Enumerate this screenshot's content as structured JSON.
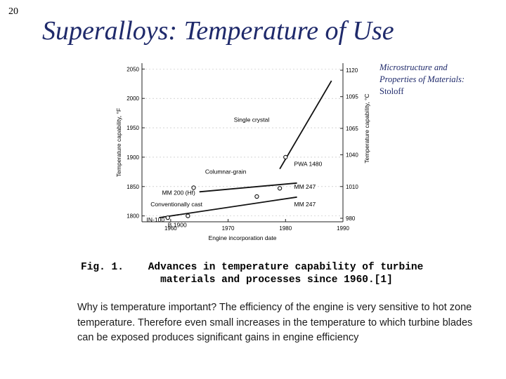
{
  "slide": {
    "number": "20",
    "title": "Superalloys: Temperature of Use",
    "source_line1": "Microstructure and",
    "source_line2": "Properties of Materials:",
    "source_author": "Stoloff",
    "caption_label": "Fig. 1.",
    "caption_line1": "Advances in temperature capability of turbine",
    "caption_line2": "materials and processes since 1960.[1]",
    "body": "Why is temperature important?  The efficiency of the engine is very sensitive to hot zone temperature.  Therefore even small increases in the temperature to which turbine blades can be exposed produces significant gains in engine efficiency"
  },
  "chart_data": {
    "type": "line",
    "xlabel": "Engine incorporation date",
    "ylabel": "Temperature capability, °F",
    "ylabel_right": "Temperature capability, °C",
    "xlim": [
      1955,
      1990
    ],
    "ylim": [
      1790,
      2060
    ],
    "x_ticks": [
      1960,
      1970,
      1980,
      1990
    ],
    "y_ticks_left": [
      1800,
      1850,
      1900,
      1950,
      2000,
      2050
    ],
    "y_ticks_right": [
      {
        "label": "980",
        "f": 1796
      },
      {
        "label": "1010",
        "f": 1850
      },
      {
        "label": "1040",
        "f": 1904
      },
      {
        "label": "1065",
        "f": 1949
      },
      {
        "label": "1095",
        "f": 2003
      },
      {
        "label": "1120",
        "f": 2048
      }
    ],
    "series": [
      {
        "name": "Conventionally cast",
        "points": [
          [
            1958,
            1797
          ],
          [
            1982,
            1832
          ]
        ]
      },
      {
        "name": "Columnar-grain",
        "points": [
          [
            1965,
            1841
          ],
          [
            1982,
            1856
          ]
        ]
      },
      {
        "name": "Single crystal",
        "points": [
          [
            1979,
            1880
          ],
          [
            1988,
            2030
          ]
        ]
      }
    ],
    "markers": [
      {
        "x": 1959.5,
        "y": 1797
      },
      {
        "x": 1963,
        "y": 1800
      },
      {
        "x": 1964,
        "y": 1848
      },
      {
        "x": 1975,
        "y": 1833
      },
      {
        "x": 1979,
        "y": 1847
      },
      {
        "x": 1980,
        "y": 1900
      }
    ],
    "annotations": [
      {
        "text": "IN-100",
        "x": 1955.8,
        "y": 1790
      },
      {
        "text": "B 1900",
        "x": 1959.5,
        "y": 1781
      },
      {
        "text": "Conventionally cast",
        "x": 1956.5,
        "y": 1816
      },
      {
        "text": "MM 200 (Hf)",
        "x": 1958.5,
        "y": 1836
      },
      {
        "text": "Columnar-grain",
        "x": 1966,
        "y": 1872
      },
      {
        "text": "MM 247",
        "x": 1981.5,
        "y": 1846
      },
      {
        "text": "MM 247",
        "x": 1981.5,
        "y": 1816
      },
      {
        "text": "PWA 1480",
        "x": 1981.5,
        "y": 1885
      },
      {
        "text": "Single crystal",
        "x": 1971,
        "y": 1960
      }
    ]
  }
}
